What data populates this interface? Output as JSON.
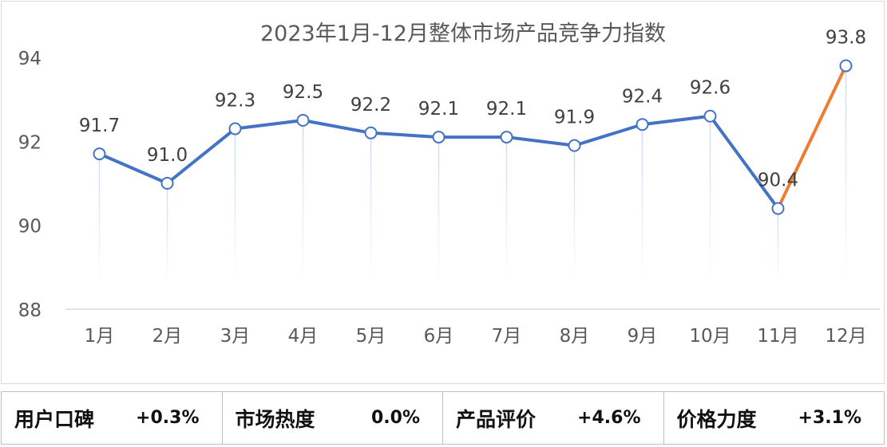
{
  "chart_data": {
    "type": "line",
    "title": "2023年1月-12月整体市场产品竞争力指数",
    "categories": [
      "1月",
      "2月",
      "3月",
      "4月",
      "5月",
      "6月",
      "7月",
      "8月",
      "9月",
      "10月",
      "11月",
      "12月"
    ],
    "values": [
      91.7,
      91.0,
      92.3,
      92.5,
      92.2,
      92.1,
      92.1,
      91.9,
      92.4,
      92.6,
      90.4,
      93.8
    ],
    "data_labels": [
      "91.7",
      "91.0",
      "92.3",
      "92.5",
      "92.2",
      "92.1",
      "92.1",
      "91.9",
      "92.4",
      "92.6",
      "90.4",
      "93.8"
    ],
    "ylim": [
      88,
      94
    ],
    "yticks": [
      88,
      90,
      92,
      94
    ],
    "ytick_labels": [
      "88",
      "90",
      "92",
      "94"
    ],
    "grid": false,
    "line_color": "#4472C4",
    "highlight_color": "#ED7D31",
    "highlight_segment": [
      10,
      11
    ]
  },
  "stats": [
    {
      "label": "用户口碑",
      "value": "+0.3%"
    },
    {
      "label": "市场热度",
      "value": "0.0%"
    },
    {
      "label": "产品评价",
      "value": "+4.6%"
    },
    {
      "label": "价格力度",
      "value": "+3.1%"
    }
  ]
}
